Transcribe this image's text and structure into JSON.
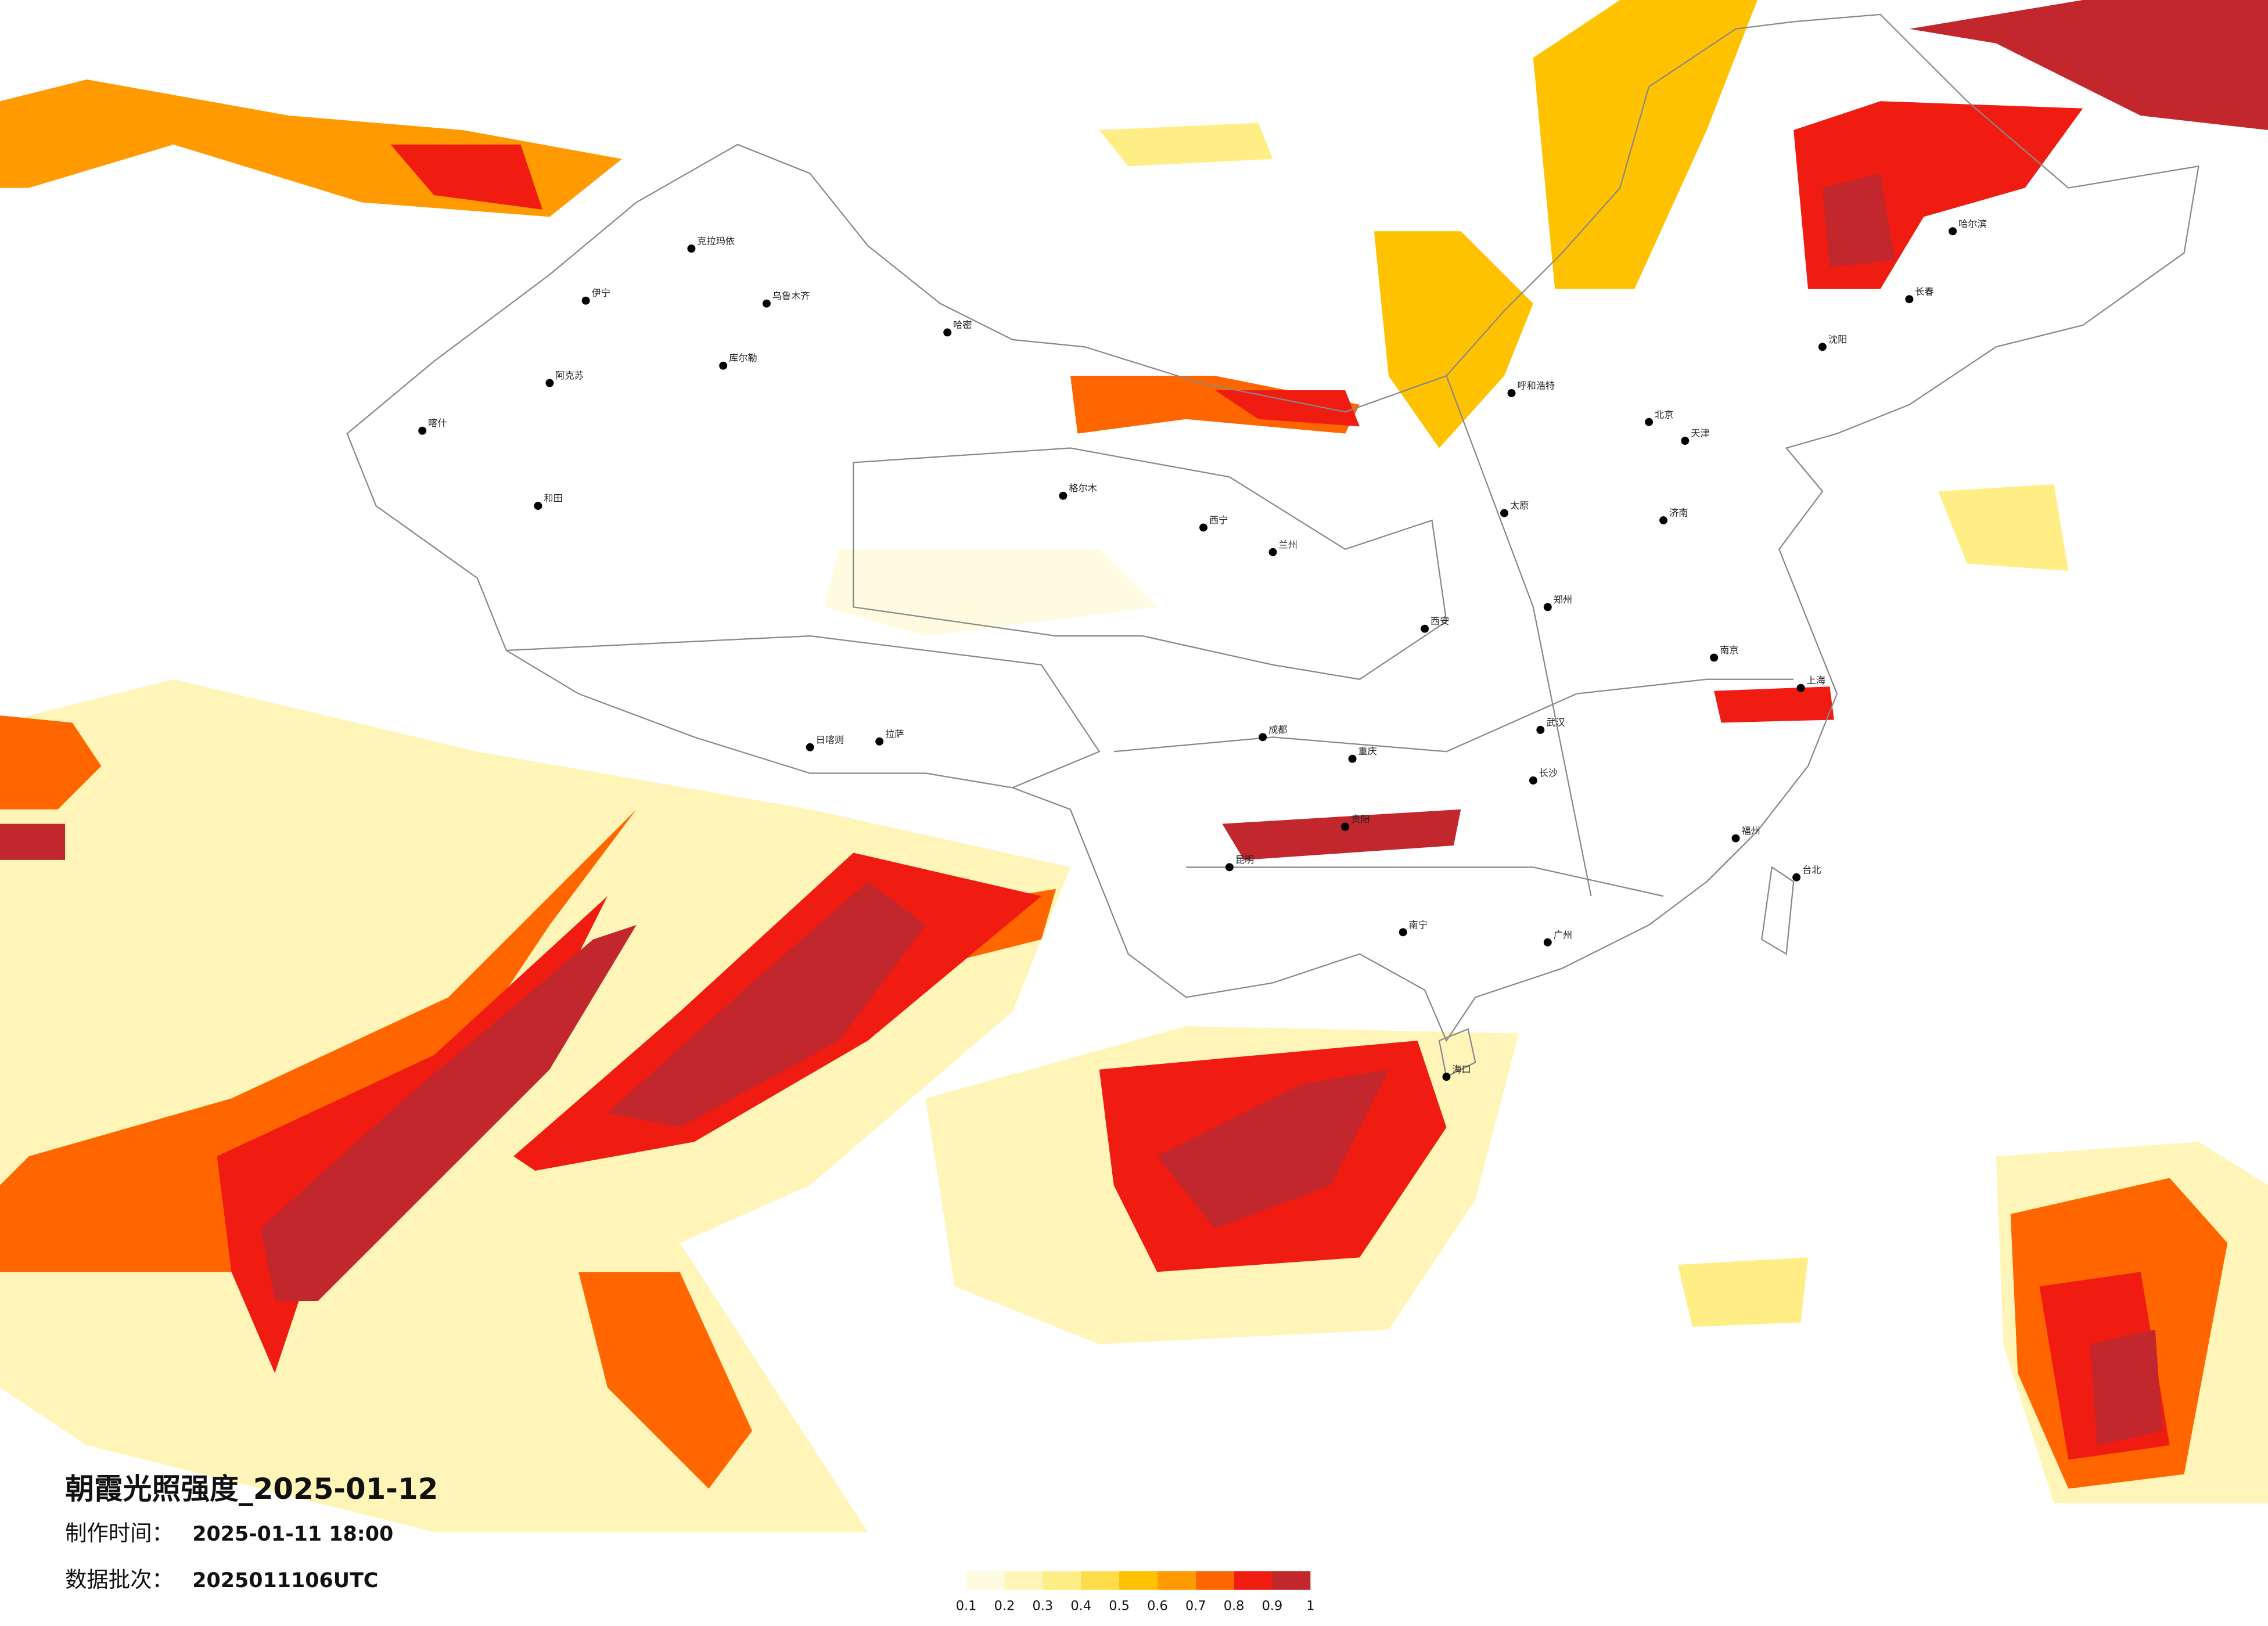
{
  "title": "朝霞光照强度_2025-01-12",
  "made_time_label": "制作时间：",
  "made_time": "2025-01-11 18:00",
  "batch_label": "数据批次：",
  "batch": "2025011106UTC",
  "legend": {
    "colors": [
      "#fffbe0",
      "#fff5b8",
      "#ffee85",
      "#ffdc4a",
      "#ffc200",
      "#ff9a00",
      "#ff6600",
      "#f01c12",
      "#c1272d"
    ],
    "ticks": [
      0.1,
      0.2,
      0.3,
      0.4,
      0.5,
      0.6,
      0.7,
      0.8,
      0.9,
      1
    ]
  },
  "cities": [
    "克拉玛依",
    "乌鲁木齐",
    "伊宁",
    "阿克苏",
    "喀什",
    "和田",
    "库尔勒",
    "哈密",
    "格尔木",
    "西宁",
    "兰州",
    "拉萨",
    "日喀则",
    "成都",
    "重庆",
    "昆明",
    "贵阳",
    "南宁",
    "广州",
    "福州",
    "上海",
    "南京",
    "武汉",
    "长沙",
    "西安",
    "郑州",
    "北京",
    "天津",
    "济南",
    "太原",
    "呼和浩特",
    "沈阳",
    "长春",
    "哈尔滨",
    "台北",
    "海口"
  ]
}
